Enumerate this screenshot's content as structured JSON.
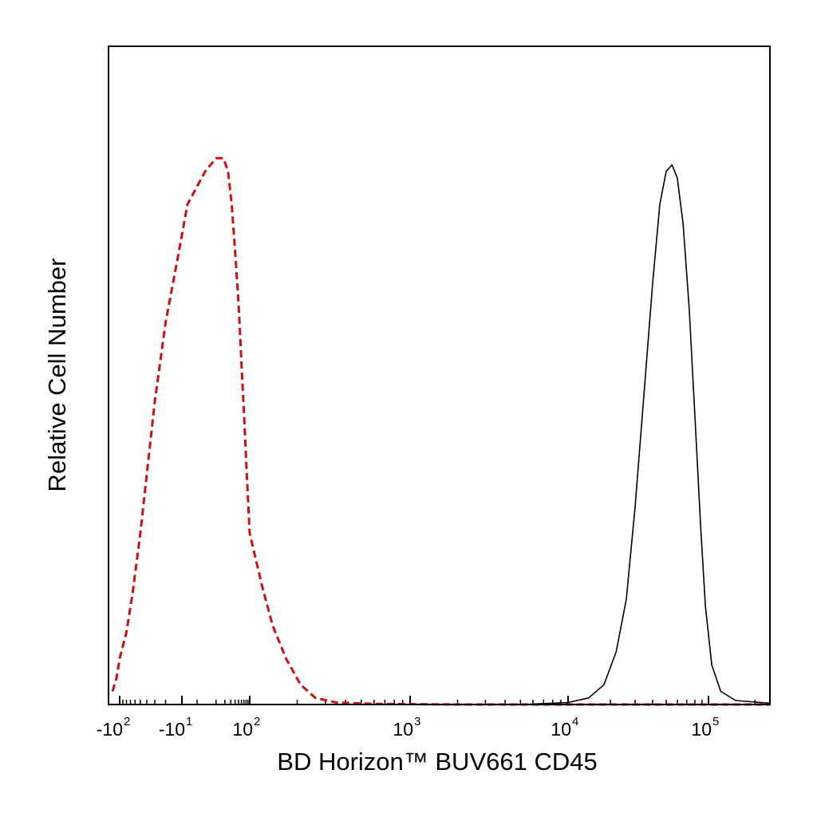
{
  "chart_data": {
    "type": "line",
    "title": "",
    "xlabel": "BD Horizon™ BUV661 CD45",
    "ylabel": "Relative Cell Number",
    "x_scale": "biexponential",
    "xlim": [
      -150,
      250000
    ],
    "ylim": [
      0,
      100
    ],
    "grid": false,
    "legend": "none",
    "x_ticks": [
      {
        "value": -100,
        "base": "-10",
        "exp": "2"
      },
      {
        "value": -10,
        "base": "-10",
        "exp": "1"
      },
      {
        "value": 100,
        "base": "10",
        "exp": "2"
      },
      {
        "value": 1000,
        "base": "10",
        "exp": "3"
      },
      {
        "value": 10000,
        "base": "10",
        "exp": "4"
      },
      {
        "value": 100000,
        "base": "10",
        "exp": "5"
      }
    ],
    "series": [
      {
        "style": "dashed",
        "color": "#cc1111",
        "points": [
          [
            -150,
            2
          ],
          [
            -120,
            4
          ],
          [
            -100,
            7
          ],
          [
            -80,
            11
          ],
          [
            -65,
            17
          ],
          [
            -50,
            26
          ],
          [
            -40,
            35
          ],
          [
            -30,
            46
          ],
          [
            -20,
            58
          ],
          [
            -12,
            68
          ],
          [
            -5,
            76
          ],
          [
            3,
            81
          ],
          [
            10,
            83
          ],
          [
            18,
            83
          ],
          [
            25,
            81
          ],
          [
            32,
            76
          ],
          [
            40,
            69
          ],
          [
            50,
            61
          ],
          [
            60,
            52
          ],
          [
            72,
            43
          ],
          [
            85,
            34
          ],
          [
            100,
            26
          ],
          [
            120,
            18
          ],
          [
            140,
            12
          ],
          [
            170,
            7
          ],
          [
            210,
            3
          ],
          [
            260,
            1
          ],
          [
            350,
            0.3
          ],
          [
            600,
            0.1
          ],
          [
            2000,
            0
          ],
          [
            250000,
            0
          ]
        ]
      },
      {
        "style": "solid",
        "color": "#000000",
        "points": [
          [
            5000,
            0
          ],
          [
            10000,
            0.3
          ],
          [
            14000,
            1
          ],
          [
            18000,
            3
          ],
          [
            22000,
            8
          ],
          [
            26000,
            16
          ],
          [
            30000,
            30
          ],
          [
            35000,
            48
          ],
          [
            40000,
            64
          ],
          [
            45000,
            76
          ],
          [
            50000,
            81
          ],
          [
            55000,
            82
          ],
          [
            60000,
            80
          ],
          [
            66000,
            73
          ],
          [
            73000,
            60
          ],
          [
            80000,
            44
          ],
          [
            88000,
            27
          ],
          [
            95000,
            15
          ],
          [
            105000,
            6
          ],
          [
            120000,
            2
          ],
          [
            150000,
            0.6
          ],
          [
            250000,
            0.2
          ]
        ]
      }
    ]
  }
}
